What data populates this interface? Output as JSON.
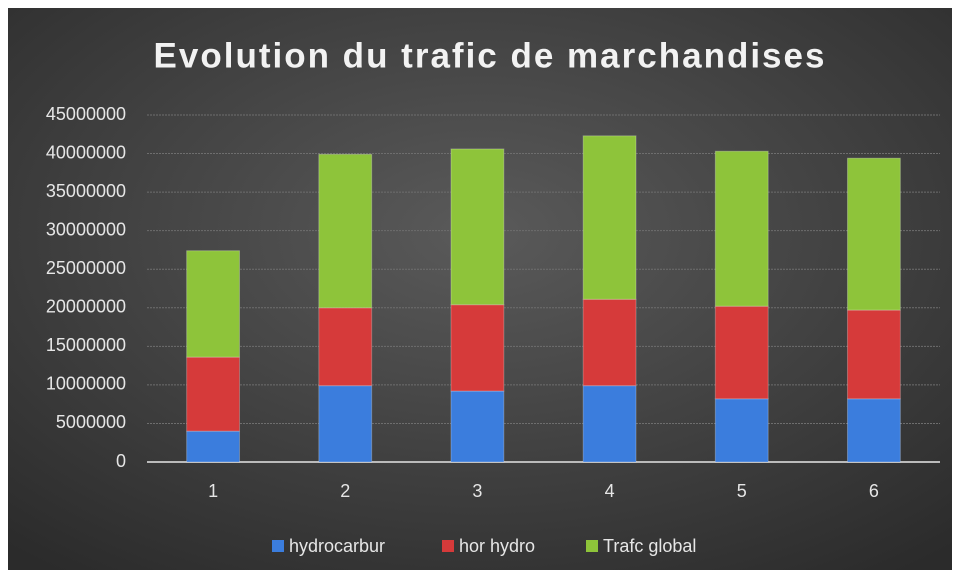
{
  "chart_data": {
    "type": "stacked_bar",
    "title": "Evolution du trafic de marchandises",
    "categories": [
      "1",
      "2",
      "3",
      "4",
      "5",
      "6"
    ],
    "series": [
      {
        "name": "hydrocarbur",
        "color": "#3b7ddd",
        "values": [
          4000000,
          9900000,
          9200000,
          9900000,
          8200000,
          8200000
        ]
      },
      {
        "name": "hor hydro",
        "color": "#d63a3a",
        "values": [
          9600000,
          10100000,
          11200000,
          11200000,
          12000000,
          11500000
        ]
      },
      {
        "name": "Trafc global",
        "color": "#8ec43a",
        "values": [
          13800000,
          19900000,
          20200000,
          21200000,
          20100000,
          19700000
        ]
      }
    ],
    "ylim": [
      0,
      45000000
    ],
    "yticks": [
      0,
      5000000,
      10000000,
      15000000,
      20000000,
      25000000,
      30000000,
      35000000,
      40000000,
      45000000
    ],
    "grid": true,
    "legend": "bottom"
  }
}
